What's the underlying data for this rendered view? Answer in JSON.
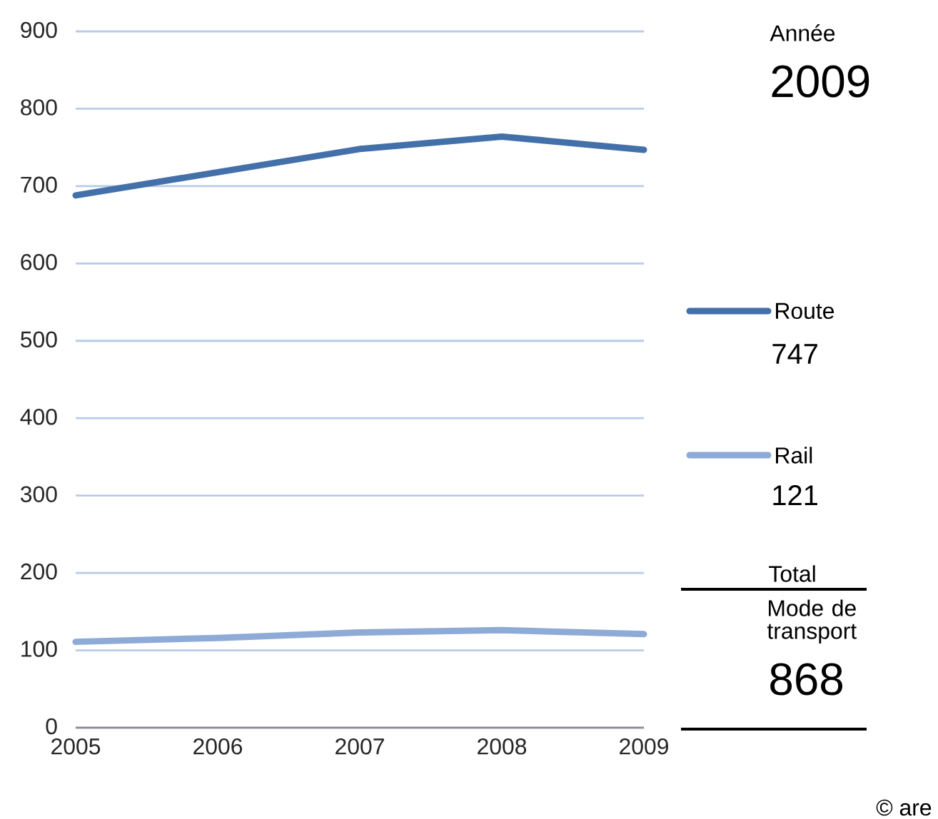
{
  "chart_data": {
    "type": "line",
    "x": [
      2005,
      2006,
      2007,
      2008,
      2009
    ],
    "series": [
      {
        "name": "Route",
        "color": "#4470aa",
        "values": [
          688,
          718,
          748,
          764,
          747
        ]
      },
      {
        "name": "Rail",
        "color": "#8eaad6",
        "values": [
          111,
          116,
          123,
          126,
          121
        ]
      }
    ],
    "xlim": [
      2005,
      2009
    ],
    "xticks": [
      2005,
      2006,
      2007,
      2008,
      2009
    ],
    "ylim": [
      0,
      900
    ],
    "yticks": [
      0,
      100,
      200,
      300,
      400,
      500,
      600,
      700,
      800,
      900
    ],
    "grid": "y",
    "legend": "right",
    "annotations": [
      "Année",
      "2009",
      "747",
      "121",
      "Total",
      "Mode de transport",
      "868",
      "© are"
    ]
  }
}
